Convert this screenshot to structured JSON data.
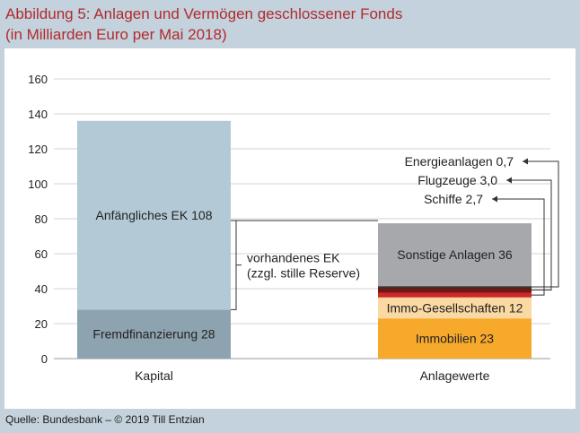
{
  "header": {
    "title_line1": "Abbildung 5: Anlagen und Vermögen geschlossener Fonds",
    "title_line2": "(in Milliarden Euro per Mai 2018)"
  },
  "footer": {
    "source": "Quelle: Bundesbank – © 2019 Till Entzian"
  },
  "chart_data": {
    "type": "bar",
    "stacked": true,
    "title": "",
    "xlabel": "",
    "ylabel": "",
    "ylim": [
      0,
      160
    ],
    "yticks": [
      0,
      20,
      40,
      60,
      80,
      100,
      120,
      140,
      160
    ],
    "grid": true,
    "categories": [
      "Kapital",
      "Anlagewerte"
    ],
    "stacks": [
      {
        "category": "Kapital",
        "segments": [
          {
            "label": "Fremdfinanzierung 28",
            "value": 28,
            "color": "#8ea3b0"
          },
          {
            "label": "Anfängliches EK 108",
            "value": 108,
            "color": "#b3cad6"
          }
        ]
      },
      {
        "category": "Anlagewerte",
        "segments": [
          {
            "label": "Immobilien 23",
            "value": 23,
            "color": "#f6a92b"
          },
          {
            "label": "Immo-Gesellschaften 12",
            "value": 12,
            "color": "#fbd9a3"
          },
          {
            "label": "Schiffe 2,7",
            "value": 2.7,
            "color": "#cf2a27"
          },
          {
            "label": "Flugzeuge 3,0",
            "value": 3.0,
            "color": "#6a1a17"
          },
          {
            "label": "Energieanlagen 0,7",
            "value": 0.7,
            "color": "#1a1a1a"
          },
          {
            "label": "Sonstige Anlagen 36",
            "value": 36,
            "color": "#a6a8ab"
          }
        ]
      }
    ],
    "small_labels": [
      "Energieanlagen 0,7",
      "Flugzeuge 3,0",
      "Schiffe 2,7"
    ],
    "annotation": {
      "line1": "vorhandenes EK",
      "line2": "(zzgl. stille Reserve)",
      "from": 28,
      "to": 79
    }
  }
}
